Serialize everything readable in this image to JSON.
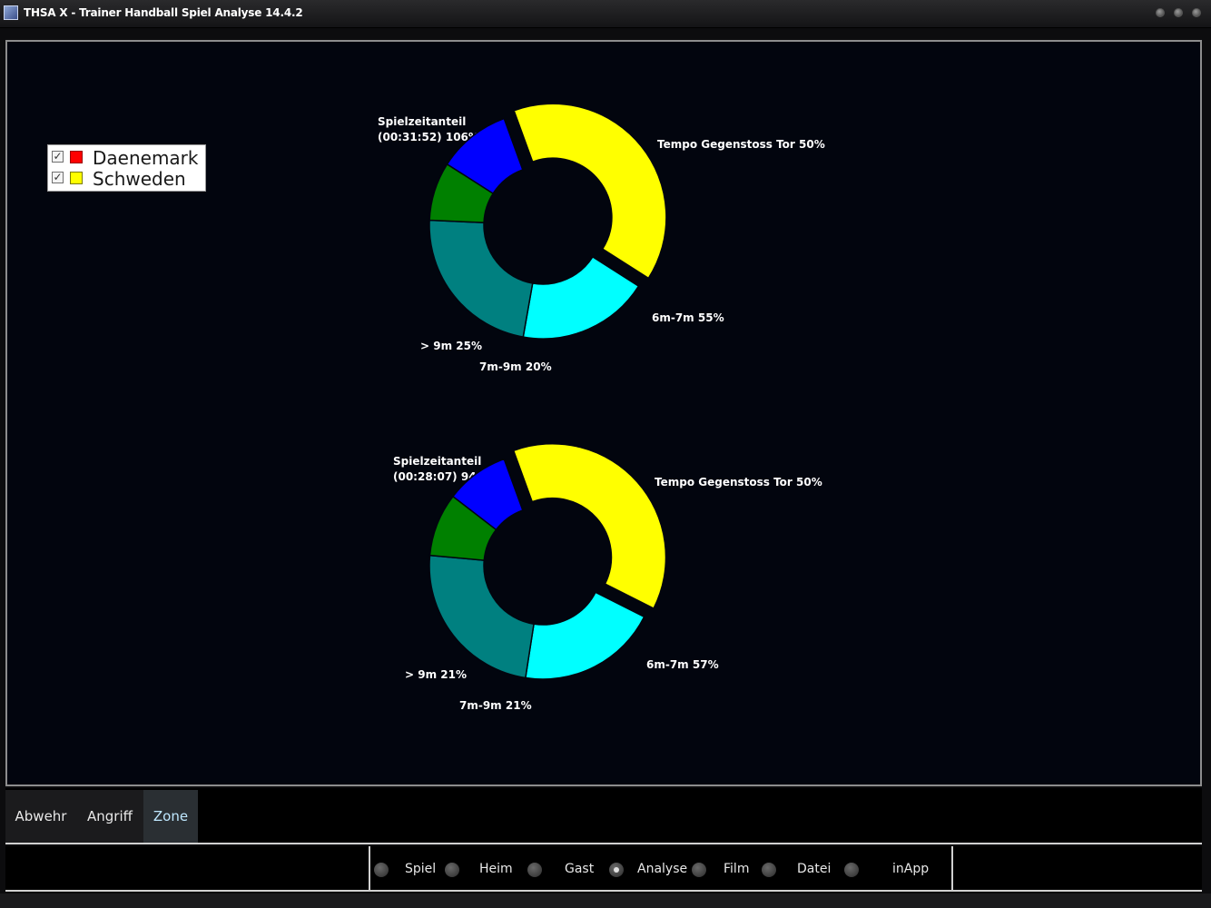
{
  "window": {
    "title": "THSA X - Trainer Handball Spiel Analyse 14.4.2"
  },
  "legend": {
    "items": [
      {
        "label": "Daenemark",
        "color": "#ff0000",
        "checked": true
      },
      {
        "label": "Schweden",
        "color": "#ffff00",
        "checked": true
      }
    ]
  },
  "chart_data": [
    {
      "type": "donut",
      "team_color": "#ffff00",
      "slices": [
        {
          "label_lines": [
            "Spielzeitanteil",
            "(00:31:52) 106%"
          ],
          "color": "#ffff00",
          "value": 38,
          "exploded": true
        },
        {
          "label_lines": [
            "Tempo Gegenstoss Tor 50%"
          ],
          "color": "#00ffff",
          "value": 18
        },
        {
          "label_lines": [
            "6m-7m 55%"
          ],
          "color": "#008080",
          "value": 22
        },
        {
          "label_lines": [
            "7m-9m 20%"
          ],
          "color": "#008000",
          "value": 8
        },
        {
          "label_lines": [
            "> 9m 25%"
          ],
          "color": "#0000ff",
          "value": 10
        }
      ]
    },
    {
      "type": "donut",
      "team_color": "#ffff00",
      "slices": [
        {
          "label_lines": [
            "Spielzeitanteil",
            "(00:28:07) 94%"
          ],
          "color": "#ffff00",
          "value": 38,
          "exploded": true
        },
        {
          "label_lines": [
            "Tempo Gegenstoss Tor 50%"
          ],
          "color": "#00ffff",
          "value": 20
        },
        {
          "label_lines": [
            "6m-7m 57%"
          ],
          "color": "#008080",
          "value": 24
        },
        {
          "label_lines": [
            "7m-9m 21%"
          ],
          "color": "#008000",
          "value": 9
        },
        {
          "label_lines": [
            "> 9m 21%"
          ],
          "color": "#0000ff",
          "value": 9
        }
      ]
    }
  ],
  "tabs": [
    {
      "label": "Abwehr",
      "active": false
    },
    {
      "label": "Angriff",
      "active": false
    },
    {
      "label": "Zone",
      "active": true
    }
  ],
  "nav": {
    "options": [
      {
        "label": "Spiel",
        "checked": false
      },
      {
        "label": "Heim",
        "checked": false
      },
      {
        "label": "Gast",
        "checked": false
      },
      {
        "label": "Analyse",
        "checked": true
      },
      {
        "label": "Film",
        "checked": false
      },
      {
        "label": "Datei",
        "checked": false
      },
      {
        "label": "inApp",
        "checked": false
      }
    ]
  }
}
